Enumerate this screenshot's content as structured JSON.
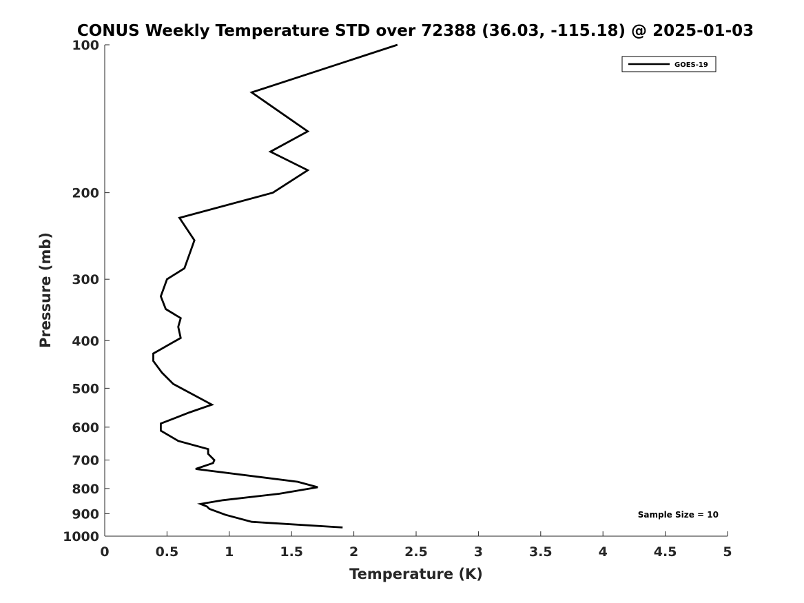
{
  "chart_data": {
    "type": "line",
    "title": "CONUS Weekly Temperature STD over 72388 (36.03, -115.18) @ 2025-01-03",
    "xlabel": "Temperature (K)",
    "ylabel": "Pressure (mb)",
    "xlim": [
      0,
      5
    ],
    "ylim": [
      100,
      1000
    ],
    "y_scale": "log",
    "y_reversed": true,
    "grid": false,
    "legend_position": "top-right",
    "x_ticks": [
      0,
      0.5,
      1,
      1.5,
      2,
      2.5,
      3,
      3.5,
      4,
      4.5,
      5
    ],
    "x_tick_labels": [
      "0",
      "0.5",
      "1",
      "1.5",
      "2",
      "2.5",
      "3",
      "3.5",
      "4",
      "4.5",
      "5"
    ],
    "y_ticks": [
      100,
      200,
      300,
      400,
      500,
      600,
      700,
      800,
      900,
      1000
    ],
    "y_tick_labels": [
      "100",
      "200",
      "300",
      "400",
      "500",
      "600",
      "700",
      "800",
      "900",
      "1000"
    ],
    "series": [
      {
        "name": "GOES-19",
        "color": "#000000",
        "x": [
          2.35,
          1.18,
          1.63,
          1.33,
          1.63,
          1.35,
          0.6,
          0.72,
          0.64,
          0.5,
          0.45,
          0.49,
          0.61,
          0.59,
          0.61,
          0.39,
          0.39,
          0.46,
          0.55,
          0.86,
          0.68,
          0.45,
          0.45,
          0.59,
          0.83,
          0.83,
          0.88,
          0.87,
          0.73,
          1.55,
          1.71,
          1.4,
          0.95,
          0.77,
          0.82,
          0.84,
          0.97,
          1.18,
          1.91
        ],
        "y": [
          100,
          125,
          150,
          165,
          180,
          200,
          225,
          250,
          285,
          300,
          325,
          345,
          360,
          375,
          395,
          425,
          440,
          465,
          490,
          540,
          560,
          590,
          610,
          640,
          665,
          680,
          700,
          710,
          730,
          775,
          795,
          820,
          845,
          860,
          870,
          880,
          905,
          935,
          960
        ]
      }
    ],
    "annotation": "Sample Size = 10"
  }
}
